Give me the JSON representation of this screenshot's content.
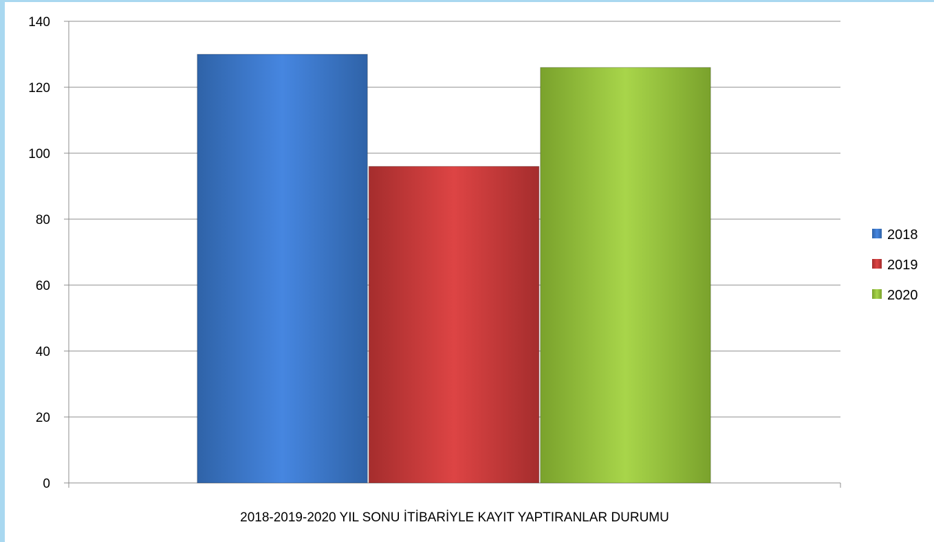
{
  "chart_data": {
    "type": "bar",
    "categories": [
      "2018-2019-2020 YIL SONU İTİBARİYLE  KAYIT YAPTIRANLAR DURUMU"
    ],
    "series": [
      {
        "name": "2018",
        "values": [
          130
        ],
        "color": "#3f7fd6"
      },
      {
        "name": "2019",
        "values": [
          96
        ],
        "color": "#d33f3f"
      },
      {
        "name": "2020",
        "values": [
          126
        ],
        "color": "#9cc93d"
      }
    ],
    "title": "",
    "xlabel": "",
    "ylabel": "",
    "ylim": [
      0,
      140
    ],
    "yticks": [
      0,
      20,
      40,
      60,
      80,
      100,
      120,
      140
    ],
    "grid": true,
    "legend": "right"
  }
}
